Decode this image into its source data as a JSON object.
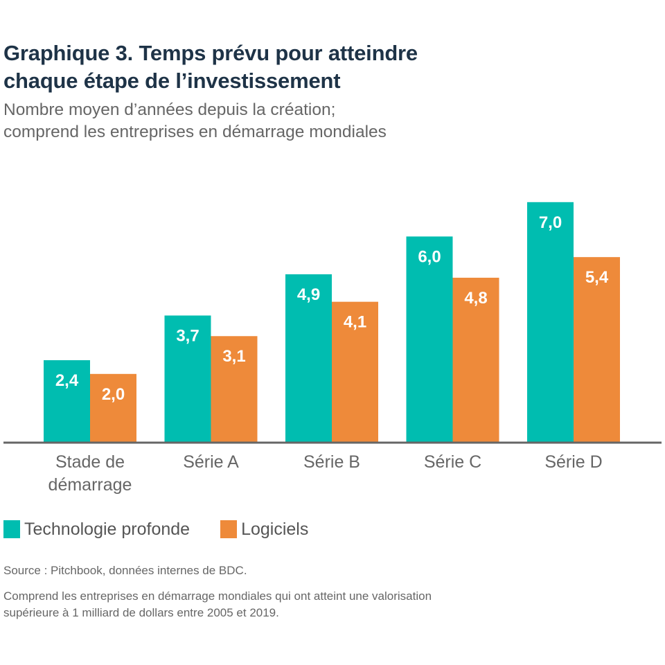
{
  "chart_data": {
    "type": "bar",
    "title": "Graphique 3. Temps prévu pour atteindre chaque étape de l’investissement",
    "subtitle": "Nombre moyen d’années depuis la création; comprend les entreprises en démarrage mondiales",
    "categories": [
      "Stade de démarrage",
      "Série A",
      "Série B",
      "Série C",
      "Série D"
    ],
    "category_lines": [
      [
        "Stade de",
        "démarrage"
      ],
      [
        "Série A"
      ],
      [
        "Série B"
      ],
      [
        "Série C"
      ],
      [
        "Série D"
      ]
    ],
    "series": [
      {
        "name": "Technologie profonde",
        "color": "#00bdb0",
        "values": [
          2.4,
          3.7,
          4.9,
          6.0,
          7.0
        ],
        "labels": [
          "2,4",
          "3,7",
          "4,9",
          "6,0",
          "7,0"
        ]
      },
      {
        "name": "Logiciels",
        "color": "#ee8a3a",
        "values": [
          2.0,
          3.1,
          4.1,
          4.8,
          5.4
        ],
        "labels": [
          "2,0",
          "3,1",
          "4,1",
          "4,8",
          "5,4"
        ]
      }
    ],
    "xlabel": "",
    "ylabel": "",
    "ylim": [
      0,
      7.0
    ],
    "grid": false,
    "legend_position": "bottom-left",
    "data_labels": "inside-top"
  },
  "header": {
    "title_lines": [
      "Graphique 3. Temps prévu pour atteindre",
      "chaque étape de l’investissement"
    ],
    "subtitle_lines": [
      "Nombre moyen d’années depuis la création;",
      "comprend les entreprises en démarrage mondiales"
    ]
  },
  "legend": {
    "items": [
      {
        "label": "Technologie profonde",
        "color": "#00bdb0"
      },
      {
        "label": "Logiciels",
        "color": "#ee8a3a"
      }
    ]
  },
  "footer": {
    "source": "Source : Pitchbook, données internes de BDC.",
    "note_lines": [
      "Comprend les entreprises en démarrage mondiales qui ont atteint une valorisation",
      "supérieure à 1 milliard de dollars entre 2005 et 2019."
    ]
  },
  "colors": {
    "title": "#1e3347",
    "text": "#666666",
    "axis": "#666666"
  }
}
